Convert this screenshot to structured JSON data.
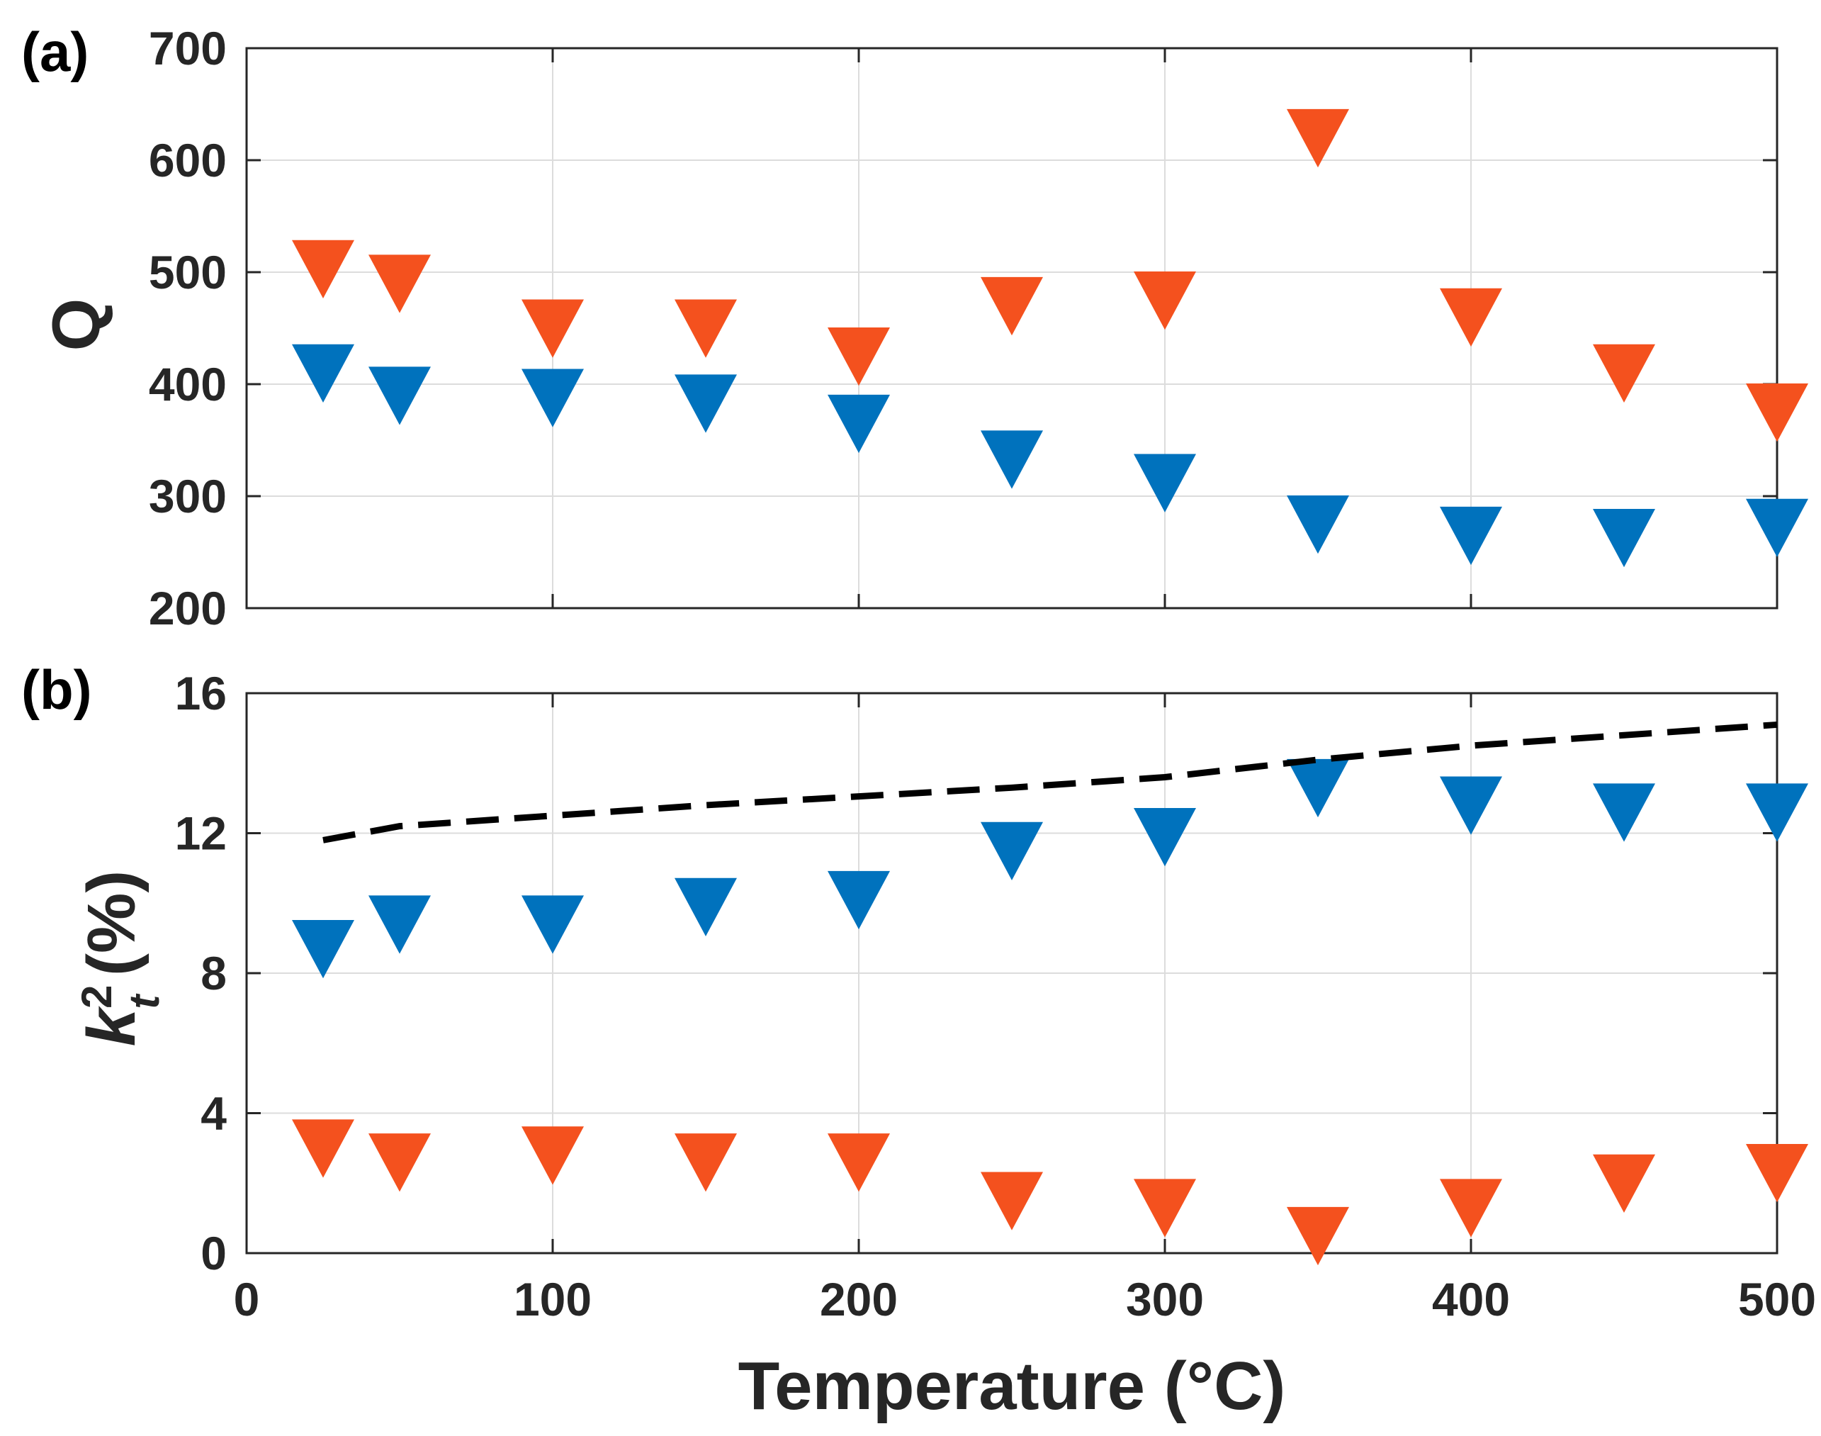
{
  "chart_data": [
    {
      "type": "scatter",
      "panel_label": "(a)",
      "ylabel": "Q",
      "xlim": [
        0,
        500
      ],
      "ylim": [
        200,
        700
      ],
      "xticks": [
        "0",
        "100",
        "200",
        "300",
        "400",
        "500"
      ],
      "yticks": [
        "200",
        "300",
        "400",
        "500",
        "600",
        "700"
      ],
      "grid": true,
      "marker": "downward-triangle",
      "series": [
        {
          "name": "orange",
          "color": "#f4511e",
          "x": [
            25,
            50,
            100,
            150,
            200,
            250,
            300,
            350,
            400,
            450,
            500
          ],
          "y": [
            503,
            490,
            450,
            450,
            425,
            470,
            475,
            620,
            460,
            410,
            375
          ]
        },
        {
          "name": "blue",
          "color": "#0072bd",
          "x": [
            25,
            50,
            100,
            150,
            200,
            250,
            300,
            350,
            400,
            450,
            500
          ],
          "y": [
            410,
            390,
            388,
            383,
            365,
            333,
            312,
            275,
            265,
            263,
            272
          ]
        }
      ]
    },
    {
      "type": "scatter",
      "panel_label": "(b)",
      "ylabel_base": "k",
      "ylabel_sup": "2",
      "ylabel_sub": "t",
      "ylabel_unit": " (%)",
      "xlabel": "Temperature (°C)",
      "xlim": [
        0,
        500
      ],
      "ylim": [
        0,
        16
      ],
      "xticks": [
        "0",
        "100",
        "200",
        "300",
        "400",
        "500"
      ],
      "yticks": [
        "0",
        "4",
        "8",
        "12",
        "16"
      ],
      "grid": true,
      "marker": "downward-triangle",
      "series": [
        {
          "name": "blue",
          "color": "#0072bd",
          "x": [
            25,
            50,
            100,
            150,
            200,
            250,
            300,
            350,
            400,
            450,
            500
          ],
          "y": [
            8.7,
            9.4,
            9.4,
            9.9,
            10.1,
            11.5,
            11.9,
            13.3,
            12.8,
            12.6,
            12.6
          ]
        },
        {
          "name": "orange",
          "color": "#f4511e",
          "x": [
            25,
            50,
            100,
            150,
            200,
            250,
            300,
            350,
            400,
            450,
            500
          ],
          "y": [
            3.0,
            2.6,
            2.8,
            2.6,
            2.6,
            1.5,
            1.3,
            0.5,
            1.3,
            2.0,
            2.3
          ]
        },
        {
          "name": "dashed-trend",
          "color": "#000000",
          "style": "dashed-line",
          "x": [
            25,
            50,
            100,
            150,
            200,
            250,
            300,
            350,
            400,
            450,
            500
          ],
          "y": [
            11.8,
            12.2,
            12.5,
            12.8,
            13.05,
            13.3,
            13.6,
            14.1,
            14.5,
            14.8,
            15.1
          ]
        }
      ]
    }
  ]
}
